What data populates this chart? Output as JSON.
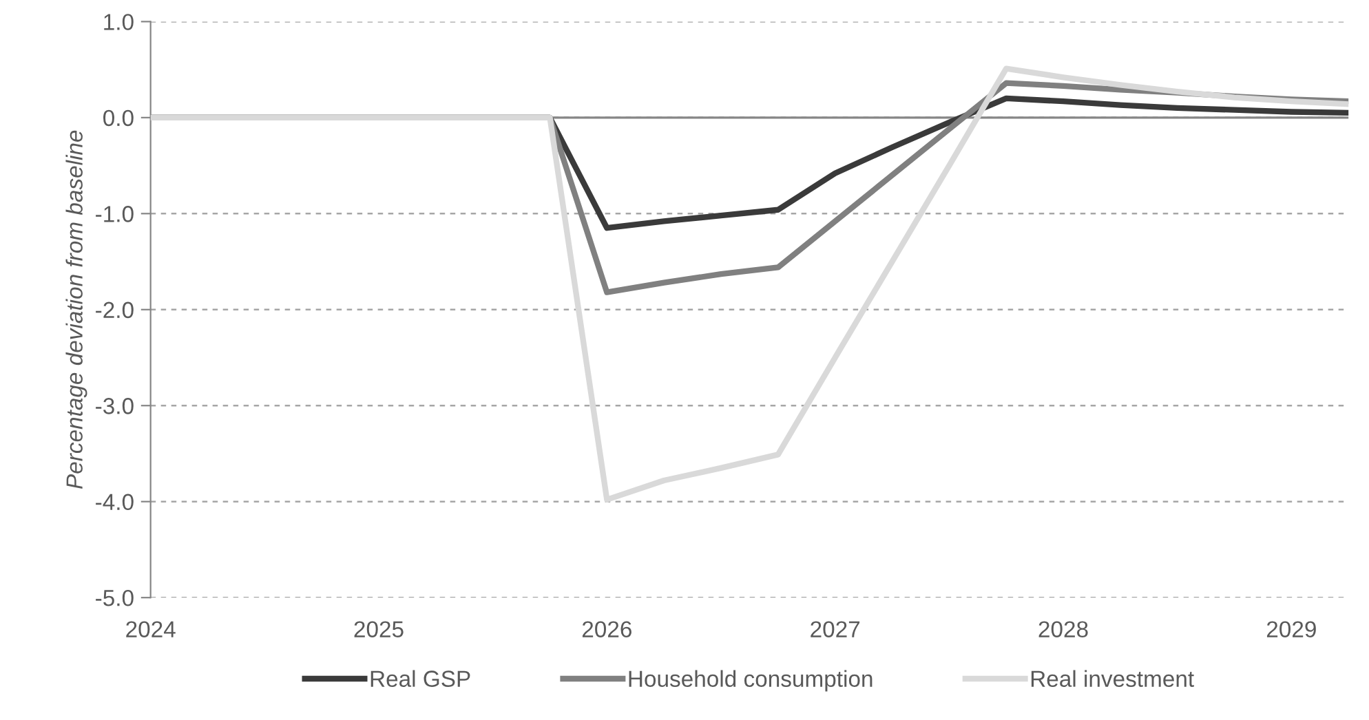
{
  "chart_data": {
    "type": "line",
    "ylabel": "Percentage deviation from baseline",
    "x": [
      2024,
      2024.25,
      2024.5,
      2024.75,
      2025,
      2025.25,
      2025.5,
      2025.75,
      2026,
      2026.25,
      2026.5,
      2026.75,
      2027,
      2027.25,
      2027.5,
      2027.75,
      2028,
      2028.25,
      2028.5,
      2028.75,
      2029,
      2029.25
    ],
    "series": [
      {
        "name": "Real GSP",
        "color": "#3a3a3a",
        "values": [
          0,
          0,
          0,
          0,
          0,
          0,
          0,
          0,
          -1.15,
          -1.08,
          -1.02,
          -0.96,
          -0.58,
          -0.31,
          -0.05,
          0.2,
          0.17,
          0.13,
          0.1,
          0.08,
          0.06,
          0.05
        ]
      },
      {
        "name": "Household consumption",
        "color": "#808080",
        "values": [
          0,
          0,
          0,
          0,
          0,
          0,
          0,
          0,
          -1.82,
          -1.72,
          -1.63,
          -1.56,
          -1.08,
          -0.6,
          -0.12,
          0.36,
          0.33,
          0.29,
          0.26,
          0.22,
          0.19,
          0.17
        ]
      },
      {
        "name": "Real investment",
        "color": "#d9d9d9",
        "values": [
          0,
          0,
          0,
          0,
          0,
          0,
          0,
          0,
          -3.98,
          -3.78,
          -3.65,
          -3.51,
          -2.5,
          -1.5,
          -0.5,
          0.51,
          0.42,
          0.34,
          0.27,
          0.21,
          0.17,
          0.14
        ]
      }
    ],
    "xlim": [
      2024,
      2029.25
    ],
    "xticks": [
      2024,
      2025,
      2026,
      2027,
      2028,
      2029
    ],
    "ylim": [
      -5,
      1
    ],
    "yticks": [
      {
        "value": 1,
        "label": "1.0"
      },
      {
        "value": 0,
        "label": "0.0"
      },
      {
        "value": -1,
        "label": "-1.0"
      },
      {
        "value": -2,
        "label": "-2.0"
      },
      {
        "value": -3,
        "label": "-3.0"
      },
      {
        "value": -4,
        "label": "-4.0"
      },
      {
        "value": -5,
        "label": "-5.0"
      }
    ],
    "grid": "y",
    "legend": "bottom",
    "marker": "none",
    "line_style": "solid"
  }
}
